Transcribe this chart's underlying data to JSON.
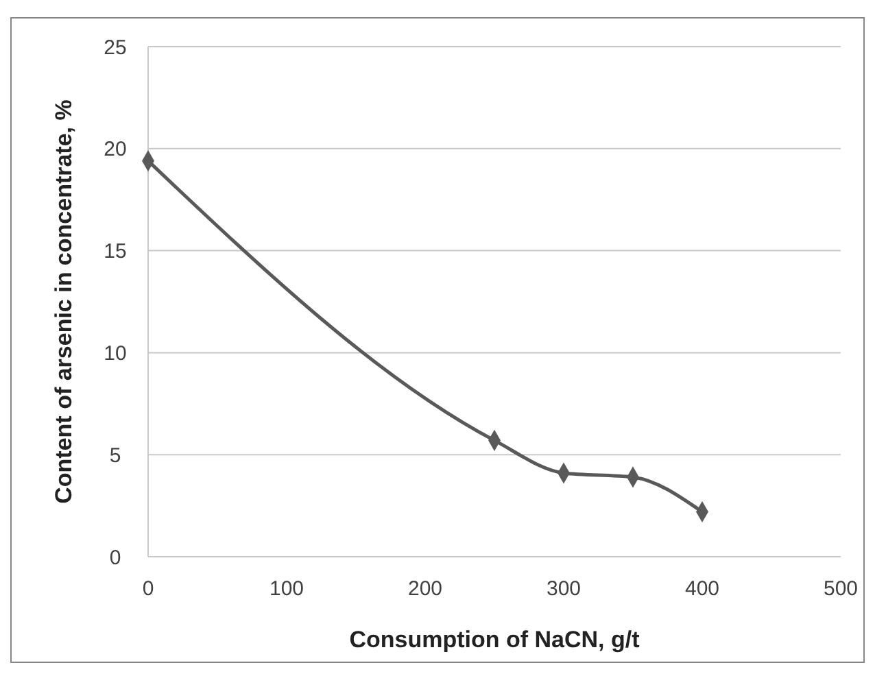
{
  "chart_data": {
    "type": "line",
    "xlabel": "Consumption of NaCN, g/t",
    "ylabel": "Content of arsenic in concentrate, %",
    "x": [
      0,
      250,
      300,
      350,
      400
    ],
    "series": [
      {
        "color": "#595959",
        "values": [
          19.4,
          5.7,
          4.1,
          3.9,
          2.2
        ]
      }
    ],
    "xlim": [
      0,
      500
    ],
    "xticks": [
      0,
      100,
      200,
      300,
      400,
      500
    ],
    "ylim": [
      0,
      25
    ],
    "yticks": [
      0,
      5,
      10,
      15,
      20,
      25
    ],
    "grid": "y",
    "marker": "diamond",
    "line_style": "solid"
  }
}
